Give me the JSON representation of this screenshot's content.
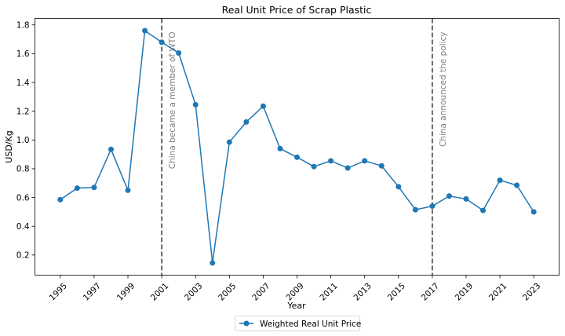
{
  "chart_data": {
    "type": "line",
    "title": "Real Unit Price of Scrap Plastic",
    "xlabel": "Year",
    "ylabel": "USD/Kg",
    "xlim": [
      1993.5,
      2024.5
    ],
    "ylim": [
      0.06,
      1.845
    ],
    "x_ticks": [
      1995,
      1997,
      1999,
      2001,
      2003,
      2005,
      2007,
      2009,
      2011,
      2013,
      2015,
      2017,
      2019,
      2021,
      2023
    ],
    "y_ticks": [
      0.2,
      0.4,
      0.6,
      0.8,
      1.0,
      1.2,
      1.4,
      1.6,
      1.8
    ],
    "y_tick_labels": [
      "0.2",
      "0.4",
      "0.6",
      "0.8",
      "1.0",
      "1.2",
      "1.4",
      "1.6",
      "1.8"
    ],
    "series": [
      {
        "name": "Weighted Real Unit Price",
        "color": "#1f77b4",
        "x": [
          1995,
          1996,
          1997,
          1998,
          1999,
          2000,
          2001,
          2002,
          2003,
          2004,
          2005,
          2006,
          2007,
          2008,
          2009,
          2010,
          2011,
          2012,
          2013,
          2014,
          2015,
          2016,
          2017,
          2018,
          2019,
          2020,
          2021,
          2022,
          2023
        ],
        "y": [
          0.585,
          0.665,
          0.67,
          0.935,
          0.65,
          1.76,
          1.68,
          1.605,
          1.245,
          0.145,
          0.985,
          1.125,
          1.235,
          0.94,
          0.88,
          0.815,
          0.855,
          0.805,
          0.855,
          0.82,
          0.675,
          0.515,
          0.54,
          0.61,
          0.59,
          0.51,
          0.72,
          0.685,
          0.5
        ]
      }
    ],
    "vlines": [
      {
        "x": 2001,
        "label": "China became a member of WTO",
        "color": "#595959"
      },
      {
        "x": 2017,
        "label": "China announced the policy",
        "color": "#595959"
      }
    ],
    "legend_placement": "bottom-center",
    "grid": false
  }
}
